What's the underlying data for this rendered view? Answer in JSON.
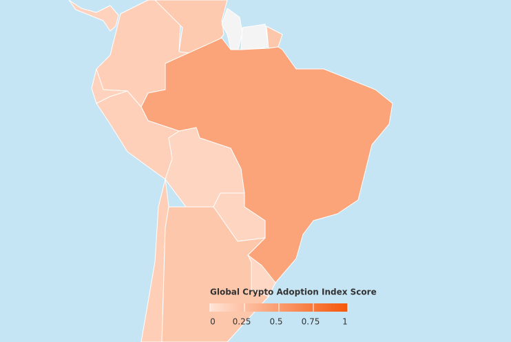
{
  "chart_data": {
    "type": "choropleth",
    "title": "Global Crypto Adoption Index Score",
    "values": [
      0.12,
      0.15,
      0.18,
      null,
      null,
      0.2,
      0.45,
      0.12,
      0.14,
      0.1,
      0.1,
      0.15,
      0.2,
      0.08
    ],
    "colorbar": {
      "lim": [
        0,
        1
      ],
      "ticks": [
        0,
        0.25,
        0.5,
        0.75,
        1
      ],
      "colors": [
        "#ffe3d5",
        "#f5560a"
      ]
    },
    "missing_color": "#f4f4f4",
    "background": "#c5e5f5"
  }
}
